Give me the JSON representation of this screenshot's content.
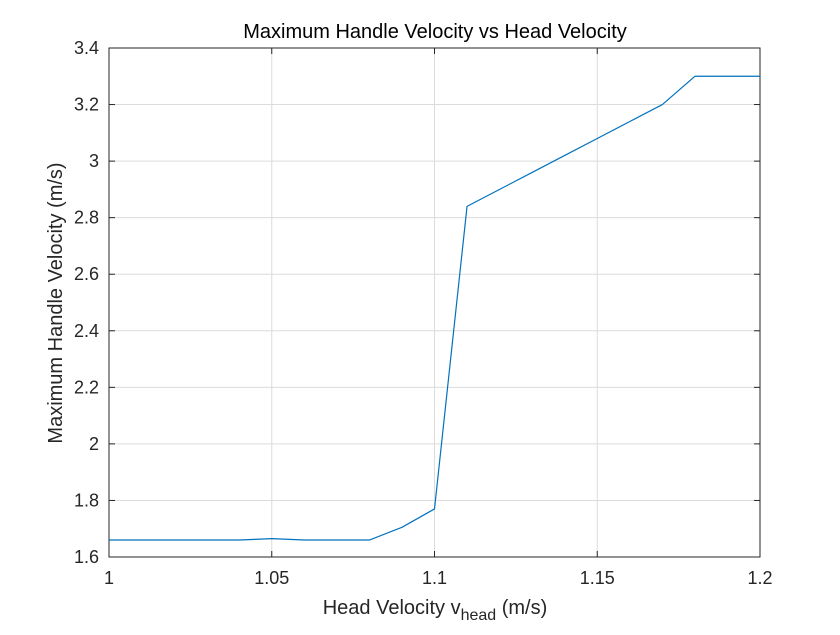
{
  "chart_data": {
    "type": "line",
    "title": "Maximum Handle Velocity vs Head Velocity",
    "xlabel": {
      "prefix": "Head Velocity v",
      "subscript": "head",
      "suffix": " (m/s)"
    },
    "ylabel": "Maximum Handle Velocity (m/s)",
    "xlim": [
      1,
      1.2
    ],
    "ylim": [
      1.6,
      3.4
    ],
    "xticks": [
      1,
      1.05,
      1.1,
      1.15,
      1.2
    ],
    "xtick_labels": [
      "1",
      "1.05",
      "1.1",
      "1.15",
      "1.2"
    ],
    "yticks": [
      1.6,
      1.8,
      2.0,
      2.2,
      2.4,
      2.6,
      2.8,
      3.0,
      3.2,
      3.4
    ],
    "ytick_labels": [
      "1.6",
      "1.8",
      "2",
      "2.2",
      "2.4",
      "2.6",
      "2.8",
      "3",
      "3.2",
      "3.4"
    ],
    "grid": true,
    "legend": false,
    "series": [
      {
        "color": "#0072BD",
        "x": [
          1.0,
          1.01,
          1.02,
          1.03,
          1.04,
          1.05,
          1.06,
          1.07,
          1.08,
          1.09,
          1.1,
          1.11,
          1.12,
          1.13,
          1.14,
          1.15,
          1.16,
          1.17,
          1.18,
          1.19,
          1.2
        ],
        "y": [
          1.66,
          1.66,
          1.66,
          1.66,
          1.66,
          1.665,
          1.66,
          1.66,
          1.66,
          1.705,
          1.77,
          2.84,
          2.9,
          2.96,
          3.02,
          3.08,
          3.14,
          3.2,
          3.3,
          3.3,
          3.3
        ]
      }
    ]
  }
}
